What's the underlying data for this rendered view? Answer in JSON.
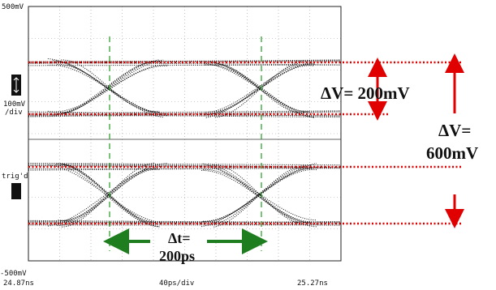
{
  "screen": {
    "top_label": "500mV",
    "scale_label": [
      "100mV",
      "/div"
    ],
    "trigger_label": "trig'd",
    "bottom_label": "-500mV",
    "time_start": "24.87ns",
    "time_scale": "40ps/div",
    "time_end": "25.27ns"
  },
  "annotations": {
    "small_swing": "ΔV= 200mV",
    "large_swing": [
      "ΔV=",
      "600mV"
    ],
    "period": [
      "Δt=",
      "200ps"
    ]
  }
}
